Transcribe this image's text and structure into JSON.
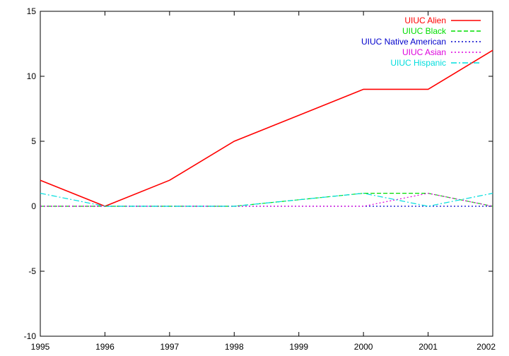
{
  "chart_data": {
    "type": "line",
    "title": "",
    "xlabel": "",
    "ylabel": "",
    "x": [
      1995,
      1996,
      1997,
      1998,
      1999,
      2000,
      2001,
      2002
    ],
    "xlim": [
      1995,
      2002
    ],
    "ylim": [
      -10,
      15
    ],
    "x_ticks": [
      "1995",
      "1996",
      "1997",
      "1998",
      "1999",
      "2000",
      "2001",
      "2002"
    ],
    "y_ticks": [
      "-10",
      "-5",
      "0",
      "5",
      "10",
      "15"
    ],
    "grid": false,
    "legend_position": "top-right",
    "series": [
      {
        "name": "UIUC Alien",
        "color": "#ff0000",
        "dash": "solid",
        "values": [
          2,
          0,
          2,
          5,
          7,
          9,
          9,
          12
        ]
      },
      {
        "name": "UIUC Black",
        "color": "#00dd00",
        "dash": "dashed",
        "values": [
          0,
          0,
          0,
          0,
          0.5,
          1,
          1,
          0
        ]
      },
      {
        "name": "UIUC Native American",
        "color": "#0000cc",
        "dash": "dotted",
        "values": [
          0,
          0,
          0,
          0,
          0,
          0,
          0,
          0
        ]
      },
      {
        "name": "UIUC Asian",
        "color": "#dd00dd",
        "dash": "dotted",
        "values": [
          0,
          0,
          0,
          0,
          0,
          0,
          1,
          0
        ]
      },
      {
        "name": "UIUC Hispanic",
        "color": "#00dddd",
        "dash": "dashdot",
        "values": [
          1,
          0,
          0,
          0,
          0.5,
          1,
          0,
          1
        ]
      }
    ]
  }
}
